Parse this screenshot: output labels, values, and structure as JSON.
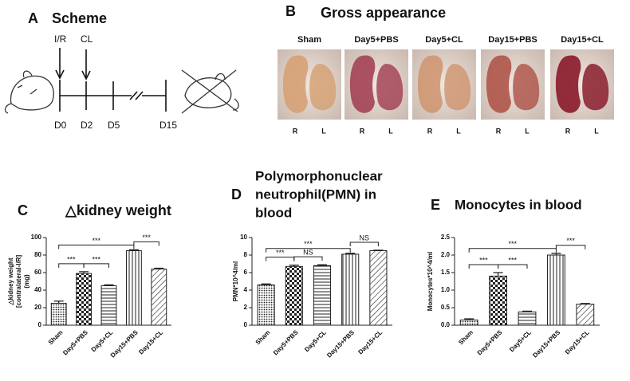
{
  "scheme": {
    "panel": "A",
    "title": "Scheme",
    "events": [
      "I/R",
      "CL"
    ],
    "timepoints": [
      "D0",
      "D2",
      "D5",
      "D15"
    ]
  },
  "gross": {
    "panel": "B",
    "title": "Gross appearance",
    "groups": [
      "Sham",
      "Day5+PBS",
      "Day5+CL",
      "Day15+PBS",
      "Day15+CL"
    ],
    "sides": [
      "R",
      "L"
    ]
  },
  "chart_data": [
    {
      "type": "bar",
      "panel": "C",
      "title": [
        "△kidney weight"
      ],
      "ylabel": [
        "△kidney weight",
        "[contralateral-I/R]",
        "(mg)"
      ],
      "categories": [
        "Sham",
        "Day5+PBS",
        "Day5+CL",
        "Day15+PBS",
        "Day15+CL"
      ],
      "values": [
        25,
        59,
        45,
        85,
        64
      ],
      "errors": [
        2.5,
        2,
        1,
        1,
        1
      ],
      "ylim": [
        0,
        100
      ],
      "yticks": [
        0,
        20,
        40,
        60,
        80,
        100
      ],
      "brackets": [
        {
          "from": 0,
          "to": 1,
          "label": "***"
        },
        {
          "from": 1,
          "to": 2,
          "label": "***"
        },
        {
          "from": 0,
          "to": 3,
          "label": "***"
        },
        {
          "from": 3,
          "to": 4,
          "label": "***"
        }
      ]
    },
    {
      "type": "bar",
      "panel": "D",
      "title": [
        "Polymorphonuclear",
        "neutrophil(PMN) in",
        "blood"
      ],
      "ylabel": [
        "PMN*10^4/ml"
      ],
      "categories": [
        "Sham",
        "Day5+PBS",
        "Day5+CL",
        "Day15+PBS",
        "Day15+CL"
      ],
      "values": [
        4.6,
        6.7,
        6.8,
        8.1,
        8.5
      ],
      "errors": [
        0.1,
        0.15,
        0.1,
        0.1,
        0.05
      ],
      "ylim": [
        0,
        10
      ],
      "yticks": [
        0,
        2,
        4,
        6,
        8,
        10
      ],
      "brackets": [
        {
          "from": 0,
          "to": 1,
          "label": "***"
        },
        {
          "from": 1,
          "to": 2,
          "label": "NS"
        },
        {
          "from": 0,
          "to": 3,
          "label": "***"
        },
        {
          "from": 3,
          "to": 4,
          "label": "NS"
        }
      ]
    },
    {
      "type": "bar",
      "panel": "E",
      "title": [
        "Monocytes in blood"
      ],
      "ylabel": [
        "Monocytes*10^4/ml"
      ],
      "categories": [
        "Sham",
        "Day5+PBS",
        "Day5+CL",
        "Day15+PBS",
        "Day15+CL"
      ],
      "values": [
        0.15,
        1.4,
        0.38,
        2.0,
        0.6
      ],
      "errors": [
        0.03,
        0.1,
        0.02,
        0.05,
        0.02
      ],
      "ylim": [
        0,
        2.5
      ],
      "yticks": [
        {
          "value": 0,
          "label": "0.0"
        },
        0.5,
        {
          "value": 1,
          "label": "1.0"
        },
        1.5,
        {
          "value": 2,
          "label": "2.0"
        },
        2.5
      ],
      "brackets": [
        {
          "from": 0,
          "to": 1,
          "label": "***"
        },
        {
          "from": 1,
          "to": 2,
          "label": "***"
        },
        {
          "from": 0,
          "to": 3,
          "label": "***"
        },
        {
          "from": 3,
          "to": 4,
          "label": "***"
        }
      ]
    }
  ]
}
